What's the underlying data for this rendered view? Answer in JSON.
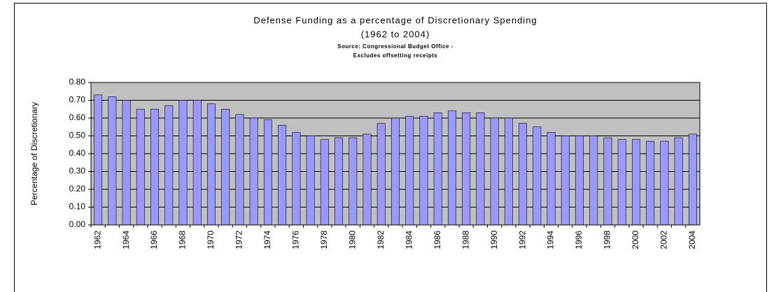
{
  "chart_data": {
    "type": "bar",
    "title": "Defense Funding as a percentage of Discretionary Spending",
    "subtitle": "(1962 to 2004)",
    "source": "Source: Congressional Budget Office -",
    "note": "Excludes offsetting receipts",
    "y_label": "Percentage of Discretionary",
    "categories": [
      "1962",
      null,
      "1964",
      null,
      "1966",
      null,
      "1968",
      null,
      "1970",
      null,
      "1972",
      null,
      "1974",
      null,
      "1976",
      null,
      "1978",
      null,
      "1980",
      null,
      "1982",
      null,
      "1984",
      null,
      "1986",
      null,
      "1988",
      null,
      "1990",
      null,
      "1992",
      null,
      "1994",
      null,
      "1996",
      null,
      "1998",
      null,
      "2000",
      null,
      "2002",
      null,
      "2004"
    ],
    "values": [
      0.73,
      0.72,
      0.7,
      0.65,
      0.65,
      0.67,
      0.7,
      0.7,
      0.68,
      0.65,
      0.62,
      0.6,
      0.59,
      0.56,
      0.52,
      0.5,
      0.48,
      0.49,
      0.49,
      0.51,
      0.57,
      0.6,
      0.61,
      0.61,
      0.63,
      0.64,
      0.63,
      0.63,
      0.6,
      0.6,
      0.57,
      0.55,
      0.52,
      0.5,
      0.5,
      0.5,
      0.49,
      0.48,
      0.48,
      0.47,
      0.47,
      0.49,
      0.51
    ],
    "color": "#9999ff",
    "plot_background": "#c0c0c0",
    "ylim": [
      0,
      0.8
    ],
    "yticks": [
      {
        "value": 0,
        "label": "0.00"
      },
      {
        "value": 0.1,
        "label": "0.10"
      },
      {
        "value": 0.2,
        "label": "0.20"
      },
      {
        "value": 0.3,
        "label": "0.30"
      },
      {
        "value": 0.4,
        "label": "0.40"
      },
      {
        "value": 0.5,
        "label": "0.50"
      },
      {
        "value": 0.6,
        "label": "0.60"
      },
      {
        "value": 0.7,
        "label": "0.70"
      },
      {
        "value": 0.8,
        "label": "0.80"
      }
    ],
    "grid": true
  }
}
